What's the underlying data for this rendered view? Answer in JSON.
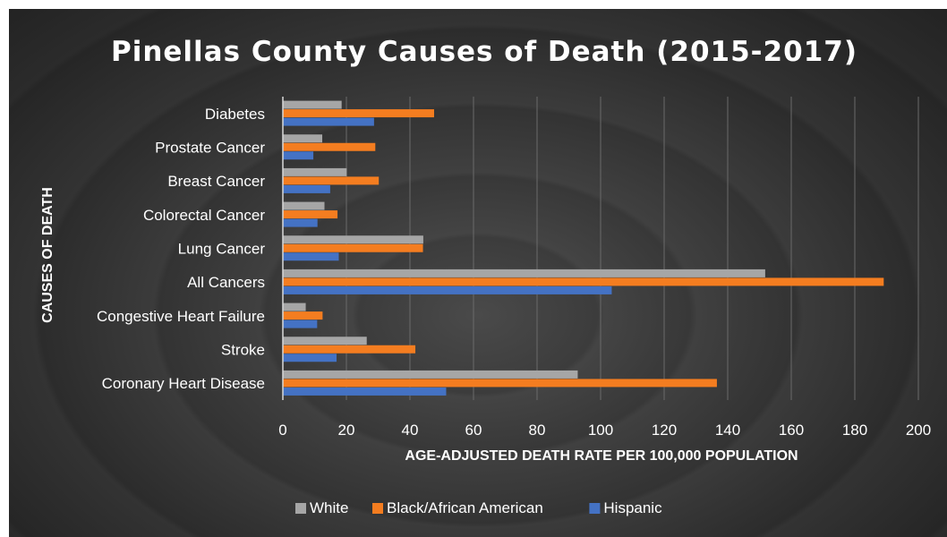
{
  "chart_data": {
    "type": "bar",
    "orientation": "horizontal",
    "title": "Pinellas County Causes of Death (2015-2017)",
    "xlabel": "AGE-ADJUSTED DEATH RATE PER 100,000 POPULATION",
    "ylabel": "CAUSES OF DEATH",
    "xlim": [
      0,
      200
    ],
    "xticks": [
      "0",
      "20",
      "40",
      "60",
      "80",
      "100",
      "120",
      "140",
      "160",
      "180",
      "200"
    ],
    "grid": "vertical",
    "legend": "bottom",
    "categories": [
      "Diabetes",
      "Prostate Cancer",
      "Breast Cancer",
      "Colorectal Cancer",
      "Lung Cancer",
      "All Cancers",
      "Congestive Heart Failure",
      "Stroke",
      "Coronary Heart Disease"
    ],
    "series": [
      {
        "name": "White",
        "color": "#a6a6a6",
        "values": [
          18.5,
          12.4,
          20.1,
          13.1,
          44.2,
          151.8,
          7.2,
          26.4,
          92.8
        ]
      },
      {
        "name": "Black/African American",
        "color": "#f47d20",
        "values": [
          47.6,
          29.1,
          30.2,
          17.2,
          44.1,
          189.1,
          12.5,
          41.7,
          136.6
        ]
      },
      {
        "name": "Hispanic",
        "color": "#4472c4",
        "values": [
          28.7,
          9.6,
          14.9,
          10.9,
          17.6,
          103.5,
          10.8,
          16.9,
          51.4
        ]
      }
    ]
  }
}
